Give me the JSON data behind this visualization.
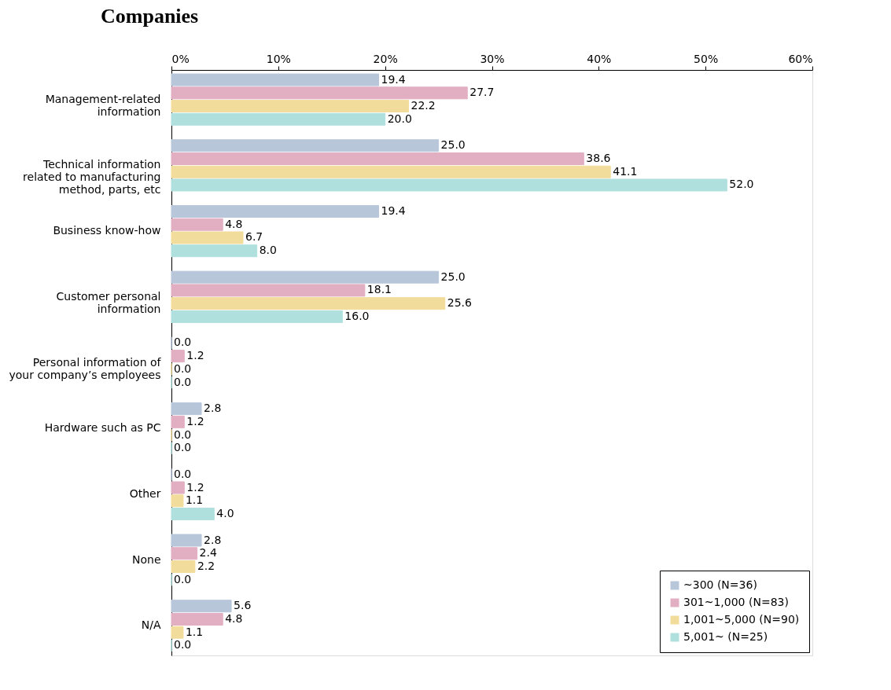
{
  "chart_data": {
    "type": "bar",
    "orientation": "horizontal",
    "title": "Companies",
    "categories": [
      "Management-related\ninformation",
      "Technical information\nrelated to manufacturing\nmethod, parts, etc",
      "Business know-how",
      "Customer personal\ninformation",
      "Personal information of\nyour company’s employees",
      "Hardware such as PC",
      "Other",
      "None",
      "N/A"
    ],
    "series": [
      {
        "name": "~300 (N=36)",
        "color": "#b8c6da",
        "values": [
          19.4,
          25.0,
          19.4,
          25.0,
          0.0,
          2.8,
          0.0,
          2.8,
          5.6
        ],
        "value_labels": [
          "19.4",
          "25.0",
          "19.4",
          "25.0",
          "0.0",
          "2.8",
          "0.0",
          "2.8",
          "5.6"
        ]
      },
      {
        "name": "301~1,000 (N=83)",
        "color": "#e2aec2",
        "values": [
          27.7,
          38.6,
          4.8,
          18.1,
          1.2,
          1.2,
          1.2,
          2.4,
          4.8
        ],
        "value_labels": [
          "27.7",
          "38.6",
          "4.8",
          "18.1",
          "1.2",
          "1.2",
          "1.2",
          "2.4",
          "4.8"
        ]
      },
      {
        "name": "1,001~5,000 (N=90)",
        "color": "#f2dc9c",
        "values": [
          22.2,
          41.1,
          6.7,
          25.6,
          0.0,
          0.0,
          1.1,
          2.2,
          1.1
        ],
        "value_labels": [
          "22.2",
          "41.1",
          "6.7",
          "25.6",
          "0.0",
          "0.0",
          "1.1",
          "2.2",
          "1.1"
        ]
      },
      {
        "name": "5,001~ (N=25)",
        "color": "#b0e0de",
        "values": [
          20.0,
          52.0,
          8.0,
          16.0,
          0.0,
          0.0,
          4.0,
          0.0,
          0.0
        ],
        "value_labels": [
          "20.0",
          "52.0",
          "8.0",
          "16.0",
          "0.0",
          "0.0",
          "4.0",
          "0.0",
          "0.0"
        ]
      }
    ],
    "xlim": [
      0,
      60
    ],
    "xticks": [
      {
        "value": 0,
        "label": "0%"
      },
      {
        "value": 10,
        "label": "10%"
      },
      {
        "value": 20,
        "label": "20%"
      },
      {
        "value": 30,
        "label": "30%"
      },
      {
        "value": 40,
        "label": "40%"
      },
      {
        "value": 50,
        "label": "50%"
      },
      {
        "value": 60,
        "label": "60%"
      }
    ],
    "legend": "bottom right",
    "grid": false
  }
}
